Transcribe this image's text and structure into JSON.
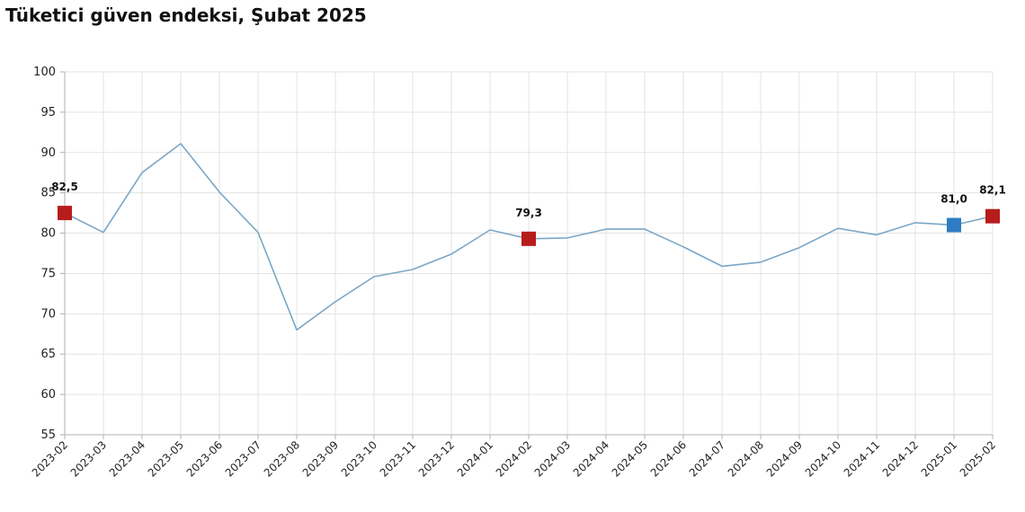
{
  "chart_data": {
    "type": "line",
    "title": "Tüketici güven endeksi, Şubat 2025",
    "xlabel": "",
    "ylabel": "",
    "ylim": [
      55,
      100
    ],
    "yticks": [
      55,
      60,
      65,
      70,
      75,
      80,
      85,
      90,
      95,
      100
    ],
    "grid": true,
    "x": [
      "2023-02",
      "2023-03",
      "2023-04",
      "2023-05",
      "2023-06",
      "2023-07",
      "2023-08",
      "2023-09",
      "2023-10",
      "2023-11",
      "2023-12",
      "2024-01",
      "2024-02",
      "2024-03",
      "2024-04",
      "2024-05",
      "2024-06",
      "2024-07",
      "2024-08",
      "2024-09",
      "2024-10",
      "2024-11",
      "2024-12",
      "2025-01",
      "2025-02"
    ],
    "series": [
      {
        "values": [
          82.5,
          80.1,
          87.5,
          91.1,
          85.1,
          80.1,
          68.0,
          71.5,
          74.6,
          75.5,
          77.4,
          80.4,
          79.3,
          79.4,
          80.5,
          80.5,
          78.3,
          75.9,
          76.4,
          78.2,
          80.6,
          79.8,
          81.3,
          81.0,
          82.1
        ],
        "color": "#7ba7c7"
      }
    ],
    "highlights": [
      {
        "x": "2023-02",
        "value": 82.5,
        "label": "82,5",
        "color": "#b71c1c"
      },
      {
        "x": "2024-02",
        "value": 79.3,
        "label": "79,3",
        "color": "#b71c1c"
      },
      {
        "x": "2025-01",
        "value": 81.0,
        "label": "81,0",
        "color": "#2e7dc2"
      },
      {
        "x": "2025-02",
        "value": 82.1,
        "label": "82,1",
        "color": "#b71c1c"
      }
    ],
    "colors": {
      "grid": "#e3e3e3",
      "axis": "#b0b0b0"
    }
  }
}
